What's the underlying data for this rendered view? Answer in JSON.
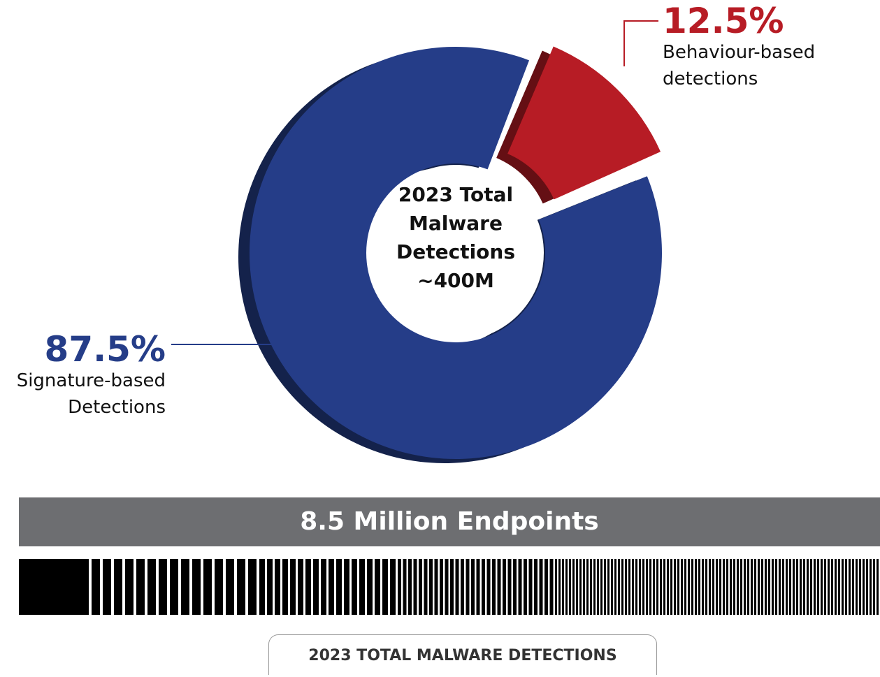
{
  "chart_data": {
    "type": "pie",
    "categories": [
      "Signature-based Detections",
      "Behaviour-based detections"
    ],
    "values": [
      87.5,
      12.5
    ],
    "value_labels": [
      "87.5%",
      "12.5%"
    ],
    "colors": [
      "#253d88",
      "#b71c25"
    ],
    "center_label": "2023 Total Malware Detections ~400M"
  },
  "banner": "8.5 Million Endpoints",
  "button": "2023 TOTAL MALWARE DETECTIONS"
}
